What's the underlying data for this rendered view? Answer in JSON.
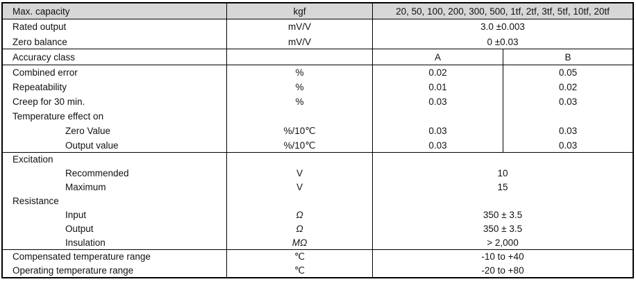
{
  "colors": {
    "header_bg": "#d7d7d7",
    "border": "#000000",
    "text": "#111111"
  },
  "table": {
    "header": {
      "label": "Max. capacity",
      "unit": "kgf",
      "capacities": "20, 50, 100, 200, 300, 500, 1tf, 2tf, 3tf, 5tf, 10tf, 20tf"
    },
    "output_rows": [
      {
        "label": "Rated output",
        "unit": "mV/V",
        "value": "3.0 ±0.003"
      },
      {
        "label": "Zero balance",
        "unit": "mV/V",
        "value": "0 ±0.03"
      }
    ],
    "accuracy_header": {
      "label": "Accuracy class",
      "unit": "",
      "class_a": "A",
      "class_b": "B"
    },
    "accuracy_rows": [
      {
        "label": "Combined error",
        "unit": "%",
        "a": "0.02",
        "b": "0.05"
      },
      {
        "label": "Repeatability",
        "unit": "%",
        "a": "0.01",
        "b": "0.02"
      },
      {
        "label": "Creep for 30 min.",
        "unit": "%",
        "a": "0.03",
        "b": "0.03"
      },
      {
        "label": "Temperature effect on",
        "unit": "",
        "a": "",
        "b": ""
      },
      {
        "label": "Zero Value",
        "unit": "%/10℃",
        "a": "0.03",
        "b": "0.03"
      },
      {
        "label": "Output value",
        "unit": "%/10℃",
        "a": "0.03",
        "b": "0.03"
      }
    ],
    "electrical_rows": [
      {
        "label": "Excitation",
        "unit": "",
        "value": ""
      },
      {
        "label": "Recommended",
        "unit": "V",
        "value": "10"
      },
      {
        "label": "Maximum",
        "unit": "V",
        "value": "15"
      },
      {
        "label": "Resistance",
        "unit": "",
        "value": ""
      },
      {
        "label": "Input",
        "unit": "Ω",
        "value": "350 ± 3.5"
      },
      {
        "label": "Output",
        "unit": "Ω",
        "value": "350 ± 3.5"
      },
      {
        "label": "Insulation",
        "unit": "MΩ",
        "value": "> 2,000"
      }
    ],
    "temperature_rows": [
      {
        "label": "Compensated temperature range",
        "unit": "℃",
        "value": "-10 to +40"
      },
      {
        "label": "Operating temperature range",
        "unit": "℃",
        "value": "-20 to +80"
      }
    ]
  }
}
